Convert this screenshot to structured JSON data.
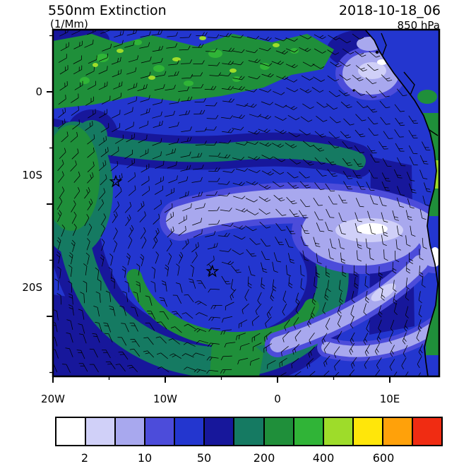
{
  "header": {
    "title": "550nm Extinction",
    "units": "(1/Mm)",
    "datetime": "2018-10-18_06",
    "level": "850 hPa"
  },
  "axes": {
    "y_ticks": [
      "0",
      "10S",
      "20S"
    ],
    "x_ticks": [
      "20W",
      "10W",
      "0",
      "10E"
    ]
  },
  "colorbar": {
    "labels": [
      "2",
      "10",
      "50",
      "200",
      "400",
      "600"
    ],
    "colors": [
      "#FFFFFF",
      "#D0D0F8",
      "#A8A8EE",
      "#4C4CDA",
      "#2336CF",
      "#17179B",
      "#157A62",
      "#1F8F3A",
      "#30B437",
      "#9EDC2A",
      "#FFE60A",
      "#FFA10A",
      "#F02C12"
    ]
  },
  "chart_data": {
    "type": "heatmap",
    "title": "550nm Extinction",
    "units": "1/Mm",
    "datetime": "2018-10-18_06",
    "pressure_level": "850 hPa",
    "projection": "lat-lon map, South Atlantic / West Africa",
    "lon_range": [
      -20,
      14.5
    ],
    "lat_range": [
      -25.3,
      5.5
    ],
    "x_tick_lons": [
      -20,
      -10,
      0,
      10
    ],
    "y_tick_lats": [
      0,
      -10,
      -20
    ],
    "contour_levels": [
      1,
      2,
      5,
      10,
      25,
      50,
      100,
      200,
      300,
      400,
      500,
      600
    ],
    "labeled_levels": [
      2,
      10,
      50,
      200,
      400,
      600
    ],
    "palette": [
      "#FFFFFF",
      "#D0D0F8",
      "#A8A8EE",
      "#4C4CDA",
      "#2336CF",
      "#17179B",
      "#157A62",
      "#1F8F3A",
      "#30B437",
      "#9EDC2A",
      "#FFE60A",
      "#FFA10A",
      "#F02C12"
    ],
    "overlay": "850 hPa wind barbs (anticyclonic gyre centered near 6W 16S)",
    "markers": [
      {
        "name": "star-marker-1",
        "lon": -14.4,
        "lat": -8.0
      },
      {
        "name": "star-marker-2",
        "lon": -5.8,
        "lat": -16.0
      }
    ],
    "features": [
      {
        "region": "equatorial band 5N-2S, 20W-5E",
        "extinction": "100-400 (green with bright green / yellow-green patches)"
      },
      {
        "region": "western edge blob near 18W 8-14S",
        "extinction": "50-200 (teal/green)"
      },
      {
        "region": "subtropical gyre ring around 6W 16S",
        "extinction": "25-200 ring (navy/teal/green) around 10-25 blue core"
      },
      {
        "region": "center-east band 5W-13E, 8-15S and arcs to SE",
        "extinction": "1-5 (lavender, white cores = cleanest marine air)"
      },
      {
        "region": "African coastal land strip",
        "extinction": "10-400 mixed, green 100-300 near 10-16S"
      }
    ]
  }
}
